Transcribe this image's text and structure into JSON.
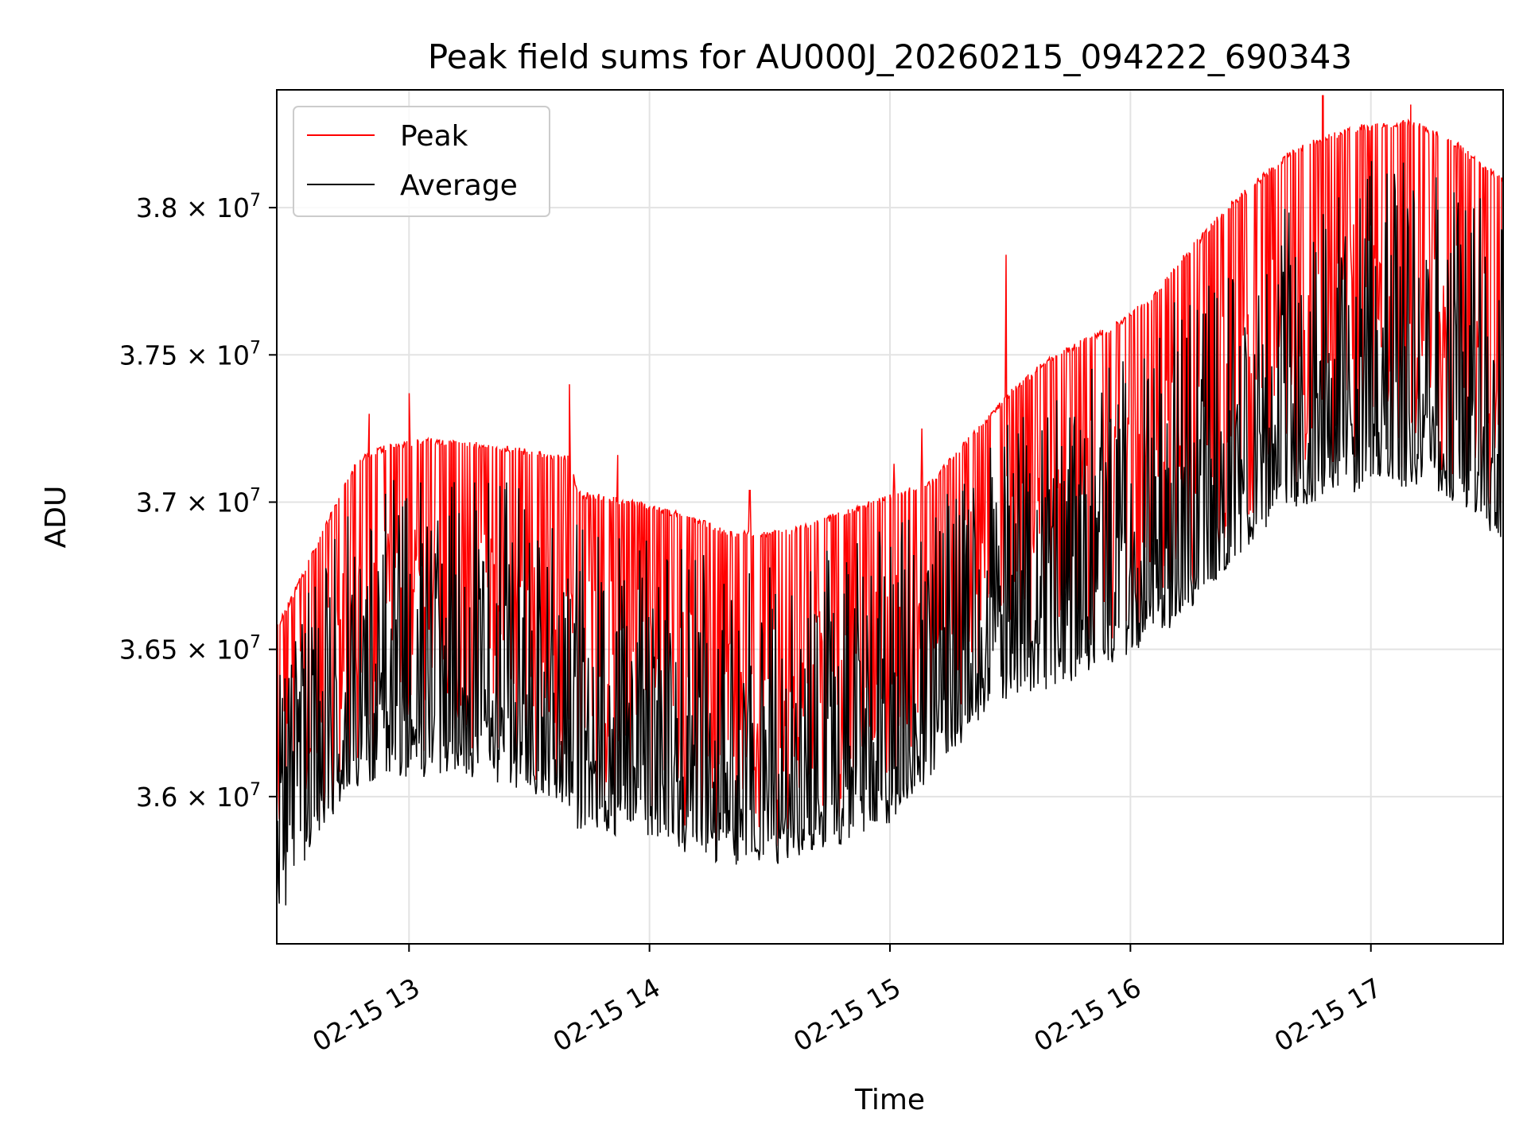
{
  "chart_data": {
    "type": "line",
    "title": "Peak field sums for AU000J_20260215_094222_690343",
    "xlabel": "Time",
    "ylabel": "ADU",
    "x_range": [
      "2026-02-15T12:27",
      "2026-02-15T17:33"
    ],
    "ylim": [
      35500000,
      38400000
    ],
    "x_ticks": [
      {
        "value": "2026-02-15T13:00",
        "label": "02-15 13"
      },
      {
        "value": "2026-02-15T14:00",
        "label": "02-15 14"
      },
      {
        "value": "2026-02-15T15:00",
        "label": "02-15 15"
      },
      {
        "value": "2026-02-15T16:00",
        "label": "02-15 16"
      },
      {
        "value": "2026-02-15T17:00",
        "label": "02-15 17"
      }
    ],
    "y_ticks": [
      {
        "value": 36000000,
        "mantissa": "3.6",
        "exp": "7"
      },
      {
        "value": 36500000,
        "mantissa": "3.65",
        "exp": "7"
      },
      {
        "value": 37000000,
        "mantissa": "3.7",
        "exp": "7"
      },
      {
        "value": 37500000,
        "mantissa": "3.75",
        "exp": "7"
      },
      {
        "value": 38000000,
        "mantissa": "3.8",
        "exp": "7"
      }
    ],
    "grid": true,
    "legend": "upper-left",
    "series": [
      {
        "name": "Peak",
        "color": "#ff0000",
        "baseline": [
          [
            "2026-02-15T12:27",
            36580000
          ],
          [
            "2026-02-15T12:33",
            36750000
          ],
          [
            "2026-02-15T12:40",
            36950000
          ],
          [
            "2026-02-15T12:47",
            37150000
          ],
          [
            "2026-02-15T12:55",
            37200000
          ],
          [
            "2026-02-15T13:05",
            37220000
          ],
          [
            "2026-02-15T13:20",
            37200000
          ],
          [
            "2026-02-15T13:35",
            37170000
          ],
          [
            "2026-02-15T13:40",
            37160000
          ],
          [
            "2026-02-15T13:42",
            37040000
          ],
          [
            "2026-02-15T13:55",
            37010000
          ],
          [
            "2026-02-15T14:10",
            36960000
          ],
          [
            "2026-02-15T14:20",
            36900000
          ],
          [
            "2026-02-15T14:35",
            36910000
          ],
          [
            "2026-02-15T14:50",
            36980000
          ],
          [
            "2026-02-15T15:00",
            37030000
          ],
          [
            "2026-02-15T15:10",
            37070000
          ],
          [
            "2026-02-15T15:20",
            37230000
          ],
          [
            "2026-02-15T15:30",
            37380000
          ],
          [
            "2026-02-15T15:40",
            37500000
          ],
          [
            "2026-02-15T15:55",
            37600000
          ],
          [
            "2026-02-15T16:05",
            37700000
          ],
          [
            "2026-02-15T16:15",
            37870000
          ],
          [
            "2026-02-15T16:25",
            38020000
          ],
          [
            "2026-02-15T16:40",
            38200000
          ],
          [
            "2026-02-15T16:55",
            38280000
          ],
          [
            "2026-02-15T17:10",
            38300000
          ],
          [
            "2026-02-15T17:20",
            38240000
          ],
          [
            "2026-02-15T17:33",
            38100000
          ]
        ],
        "spikes": [
          [
            "2026-02-15T12:50",
            37300000
          ],
          [
            "2026-02-15T13:00",
            37370000
          ],
          [
            "2026-02-15T13:40",
            37400000
          ],
          [
            "2026-02-15T13:52",
            37160000
          ],
          [
            "2026-02-15T14:25",
            37040000
          ],
          [
            "2026-02-15T15:01",
            37130000
          ],
          [
            "2026-02-15T15:08",
            37250000
          ],
          [
            "2026-02-15T15:29",
            37840000
          ],
          [
            "2026-02-15T16:48",
            38380000
          ],
          [
            "2026-02-15T17:10",
            38350000
          ]
        ]
      },
      {
        "name": "Average",
        "color": "#000000",
        "baseline": [
          [
            "2026-02-15T12:27",
            35520000
          ],
          [
            "2026-02-15T12:31",
            35700000
          ],
          [
            "2026-02-15T12:37",
            35850000
          ],
          [
            "2026-02-15T12:45",
            36020000
          ],
          [
            "2026-02-15T12:55",
            36040000
          ],
          [
            "2026-02-15T13:10",
            36060000
          ],
          [
            "2026-02-15T13:20",
            36050000
          ],
          [
            "2026-02-15T13:30",
            36000000
          ],
          [
            "2026-02-15T13:40",
            35950000
          ],
          [
            "2026-02-15T13:42",
            35880000
          ],
          [
            "2026-02-15T13:55",
            35860000
          ],
          [
            "2026-02-15T14:10",
            35800000
          ],
          [
            "2026-02-15T14:20",
            35760000
          ],
          [
            "2026-02-15T14:35",
            35770000
          ],
          [
            "2026-02-15T14:50",
            35830000
          ],
          [
            "2026-02-15T15:00",
            35900000
          ],
          [
            "2026-02-15T15:10",
            36050000
          ],
          [
            "2026-02-15T15:20",
            36200000
          ],
          [
            "2026-02-15T15:30",
            36310000
          ],
          [
            "2026-02-15T15:45",
            36380000
          ],
          [
            "2026-02-15T16:00",
            36480000
          ],
          [
            "2026-02-15T16:10",
            36560000
          ],
          [
            "2026-02-15T16:20",
            36700000
          ],
          [
            "2026-02-15T16:30",
            36850000
          ],
          [
            "2026-02-15T16:40",
            36960000
          ],
          [
            "2026-02-15T16:50",
            37010000
          ],
          [
            "2026-02-15T17:05",
            37050000
          ],
          [
            "2026-02-15T17:15",
            37040000
          ],
          [
            "2026-02-15T17:25",
            36950000
          ],
          [
            "2026-02-15T17:33",
            36860000
          ]
        ]
      }
    ]
  }
}
